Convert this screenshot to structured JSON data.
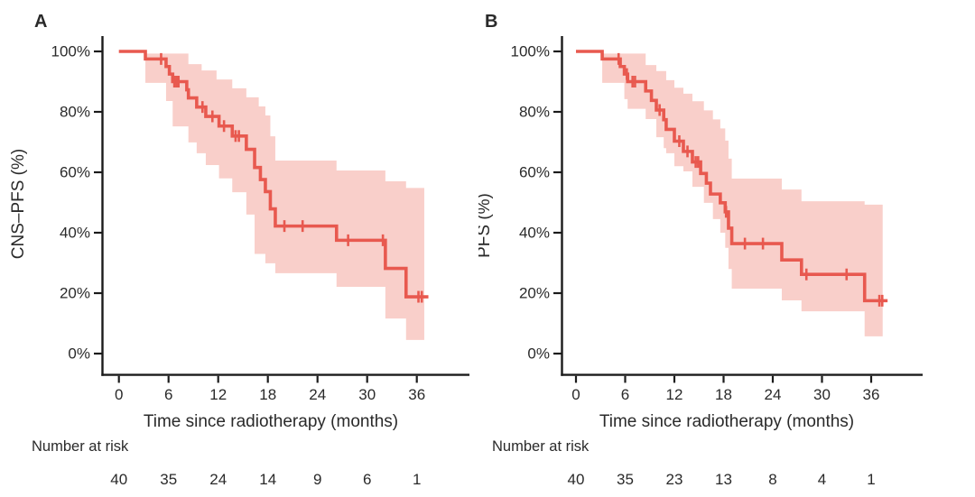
{
  "figure": {
    "background": "#ffffff"
  },
  "chart_data": [
    {
      "type": "line",
      "subtype": "kaplan-meier-step",
      "panel": "A",
      "ylabel": "CNS–PFS (%)",
      "xlabel": "Time since radiotherapy (months)",
      "x_ticks": [
        0,
        6,
        12,
        18,
        24,
        30,
        36
      ],
      "y_ticks": [
        "100%",
        "80%",
        "60%",
        "40%",
        "20%",
        "0%"
      ],
      "y_tick_values": [
        100,
        80,
        60,
        40,
        20,
        0
      ],
      "xlim": [
        0,
        42
      ],
      "ylim": [
        0,
        100
      ],
      "grid": false,
      "legend": false,
      "number_at_risk_label": "Number at risk",
      "number_at_risk": [
        40,
        35,
        24,
        14,
        9,
        6,
        1
      ],
      "colors": {
        "line": "#e8594f",
        "band": "#f9cfca",
        "axis": "#1b1b1b"
      },
      "steps": [
        [
          0,
          100
        ],
        [
          3.2,
          97.5
        ],
        [
          5.7,
          95
        ],
        [
          6.1,
          92.5
        ],
        [
          6.5,
          90
        ],
        [
          8.2,
          87.3
        ],
        [
          8.4,
          84.6
        ],
        [
          9.4,
          81.6
        ],
        [
          10.5,
          78.5
        ],
        [
          12.1,
          75.3
        ],
        [
          13.7,
          72.0
        ],
        [
          15.4,
          67.6
        ],
        [
          16.4,
          61.6
        ],
        [
          17.1,
          57.6
        ],
        [
          17.7,
          53.6
        ],
        [
          18.3,
          47.9
        ],
        [
          18.9,
          42.2
        ],
        [
          26.3,
          37.5
        ],
        [
          32.2,
          28.2
        ],
        [
          34.7,
          18.8
        ]
      ],
      "censors": [
        [
          5.1,
          97.5
        ],
        [
          6.7,
          90
        ],
        [
          6.95,
          90
        ],
        [
          7.2,
          90
        ],
        [
          10.1,
          81.6
        ],
        [
          11.3,
          78.5
        ],
        [
          12.7,
          75.3
        ],
        [
          14.1,
          72.0
        ],
        [
          14.5,
          72.0
        ],
        [
          20.0,
          42.2
        ],
        [
          22.2,
          42.2
        ],
        [
          27.7,
          37.5
        ],
        [
          31.9,
          37.5
        ],
        [
          36.2,
          18.8
        ],
        [
          36.6,
          18.8
        ]
      ],
      "band_upper": [
        [
          3.2,
          99.3
        ],
        [
          8.4,
          95.8
        ],
        [
          10.0,
          93.7
        ],
        [
          11.8,
          90.7
        ],
        [
          13.7,
          87.8
        ],
        [
          15.4,
          84.8
        ],
        [
          16.9,
          81.8
        ],
        [
          17.7,
          78.8
        ],
        [
          18.3,
          71.9
        ],
        [
          18.9,
          63.9
        ],
        [
          26.3,
          60.6
        ],
        [
          32.2,
          57.0
        ],
        [
          34.7,
          54.8
        ]
      ],
      "band_lower": [
        [
          3.2,
          89.6
        ],
        [
          5.7,
          83.6
        ],
        [
          6.5,
          75.2
        ],
        [
          8.4,
          69.9
        ],
        [
          9.4,
          66.3
        ],
        [
          10.5,
          62.4
        ],
        [
          12.1,
          58.0
        ],
        [
          13.7,
          53.4
        ],
        [
          15.4,
          46.0
        ],
        [
          16.4,
          33.0
        ],
        [
          17.7,
          29.9
        ],
        [
          18.9,
          26.6
        ],
        [
          26.3,
          22.1
        ],
        [
          32.2,
          11.6
        ],
        [
          34.7,
          4.5
        ]
      ],
      "band_end": 36.9,
      "curve_end": 37.4
    },
    {
      "type": "line",
      "subtype": "kaplan-meier-step",
      "panel": "B",
      "ylabel": "PFS (%)",
      "xlabel": "Time since radiotherapy (months)",
      "x_ticks": [
        0,
        6,
        12,
        18,
        24,
        30,
        36
      ],
      "y_ticks": [
        "100%",
        "80%",
        "60%",
        "40%",
        "20%",
        "0%"
      ],
      "y_tick_values": [
        100,
        80,
        60,
        40,
        20,
        0
      ],
      "xlim": [
        0,
        42
      ],
      "ylim": [
        0,
        100
      ],
      "grid": false,
      "legend": false,
      "number_at_risk_label": "Number at risk",
      "number_at_risk": [
        40,
        35,
        23,
        13,
        8,
        4,
        1
      ],
      "colors": {
        "line": "#e8594f",
        "band": "#f9cfca",
        "axis": "#1b1b1b"
      },
      "steps": [
        [
          0,
          100
        ],
        [
          3.2,
          97.5
        ],
        [
          5.4,
          95
        ],
        [
          5.9,
          92.5
        ],
        [
          6.3,
          90
        ],
        [
          8.5,
          86.9
        ],
        [
          9.2,
          83.8
        ],
        [
          9.8,
          80.6
        ],
        [
          10.7,
          77.4
        ],
        [
          11.0,
          74.2
        ],
        [
          12.0,
          70.3
        ],
        [
          13.1,
          66.9
        ],
        [
          14.2,
          63.4
        ],
        [
          15.2,
          59.6
        ],
        [
          15.9,
          56.4
        ],
        [
          16.4,
          52.8
        ],
        [
          17.6,
          49.9
        ],
        [
          18.2,
          46.9
        ],
        [
          18.6,
          41.5
        ],
        [
          19.0,
          36.4
        ],
        [
          25.1,
          31.0
        ],
        [
          27.5,
          26.2
        ],
        [
          35.2,
          17.5
        ]
      ],
      "censors": [
        [
          5.2,
          97.5
        ],
        [
          6.2,
          92.5
        ],
        [
          6.9,
          90
        ],
        [
          7.2,
          90
        ],
        [
          10.2,
          80.6
        ],
        [
          12.6,
          70.3
        ],
        [
          13.6,
          66.9
        ],
        [
          14.6,
          63.4
        ],
        [
          14.9,
          63.4
        ],
        [
          18.3,
          46.9
        ],
        [
          20.6,
          36.4
        ],
        [
          22.8,
          36.4
        ],
        [
          28.1,
          26.2
        ],
        [
          33.0,
          26.2
        ],
        [
          37.0,
          17.5
        ],
        [
          37.35,
          17.5
        ]
      ],
      "band_upper": [
        [
          3.2,
          99.3
        ],
        [
          8.5,
          95.5
        ],
        [
          9.8,
          93.5
        ],
        [
          11.0,
          90.5
        ],
        [
          12.0,
          88.0
        ],
        [
          13.1,
          86.0
        ],
        [
          14.2,
          83.5
        ],
        [
          15.6,
          80.5
        ],
        [
          16.7,
          77.5
        ],
        [
          17.6,
          74.5
        ],
        [
          18.2,
          70.5
        ],
        [
          18.6,
          64.5
        ],
        [
          19.0,
          57.9
        ],
        [
          25.1,
          54.3
        ],
        [
          27.5,
          50.4
        ],
        [
          35.2,
          49.3
        ]
      ],
      "band_lower": [
        [
          3.2,
          89.6
        ],
        [
          5.9,
          84.2
        ],
        [
          6.3,
          81.0
        ],
        [
          8.5,
          77.6
        ],
        [
          9.8,
          71.6
        ],
        [
          10.7,
          68.0
        ],
        [
          11.0,
          66.3
        ],
        [
          12.0,
          62.0
        ],
        [
          13.1,
          60.3
        ],
        [
          14.2,
          55.2
        ],
        [
          15.6,
          49.9
        ],
        [
          16.7,
          44.5
        ],
        [
          17.6,
          40.0
        ],
        [
          18.2,
          35.0
        ],
        [
          18.6,
          28.0
        ],
        [
          19.0,
          21.5
        ],
        [
          25.1,
          17.6
        ],
        [
          27.5,
          14.0
        ],
        [
          35.2,
          5.7
        ]
      ],
      "band_end": 37.4,
      "curve_end": 38.0
    }
  ]
}
